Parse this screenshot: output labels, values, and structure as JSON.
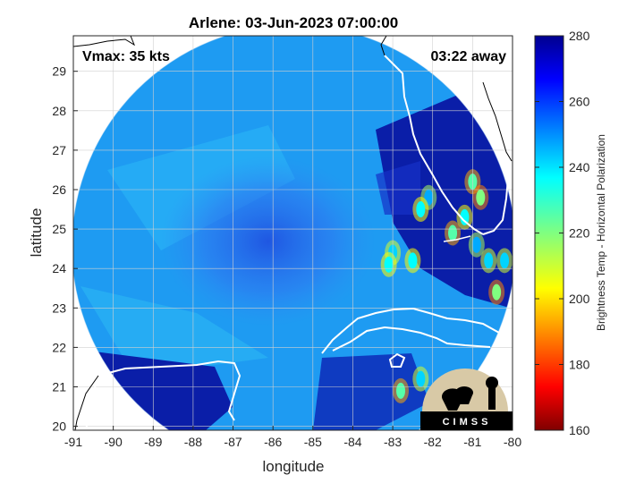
{
  "chart_data": {
    "type": "heatmap",
    "title": "Arlene: 03-Jun-2023 07:00:00",
    "xlabel": "longitude",
    "ylabel": "latitude",
    "xlim": [
      -91,
      -80
    ],
    "ylim": [
      19.9,
      29.9
    ],
    "xticks": [
      "-91",
      "-90",
      "-89",
      "-88",
      "-87",
      "-86",
      "-85",
      "-84",
      "-83",
      "-82",
      "-81",
      "-80"
    ],
    "yticks": [
      "20",
      "21",
      "22",
      "23",
      "24",
      "25",
      "26",
      "27",
      "28",
      "29"
    ],
    "grid": true,
    "annotations": {
      "vmax": "Vmax: 35 kts",
      "time_away": "03:22 away"
    },
    "colorbar": {
      "label": "Brightness Temp - Horizontal Polarization",
      "range": [
        160,
        280
      ],
      "ticks": [
        "280",
        "260",
        "240",
        "220",
        "200",
        "180",
        "160"
      ],
      "colormap": "jet"
    },
    "swath": {
      "center": [
        -85.6,
        24.8
      ],
      "typical_value": 245,
      "core_value": 238,
      "warm_region_value": 268
    },
    "hot_spots": [
      {
        "lon": -82.1,
        "lat": 25.8,
        "value": 195
      },
      {
        "lon": -82.3,
        "lat": 25.5,
        "value": 205
      },
      {
        "lon": -81.0,
        "lat": 26.2,
        "value": 215
      },
      {
        "lon": -80.8,
        "lat": 25.8,
        "value": 220
      },
      {
        "lon": -81.2,
        "lat": 25.3,
        "value": 205
      },
      {
        "lon": -80.9,
        "lat": 24.6,
        "value": 195
      },
      {
        "lon": -80.6,
        "lat": 24.2,
        "value": 200
      },
      {
        "lon": -80.2,
        "lat": 24.2,
        "value": 200
      },
      {
        "lon": -83.0,
        "lat": 24.4,
        "value": 200
      },
      {
        "lon": -83.1,
        "lat": 24.1,
        "value": 205
      },
      {
        "lon": -82.5,
        "lat": 24.2,
        "value": 205
      },
      {
        "lon": -81.5,
        "lat": 24.9,
        "value": 215
      },
      {
        "lon": -82.3,
        "lat": 21.2,
        "value": 200
      },
      {
        "lon": -82.8,
        "lat": 20.9,
        "value": 215
      },
      {
        "lon": -80.4,
        "lat": 23.4,
        "value": 220
      }
    ],
    "logo": "CIMSS"
  }
}
